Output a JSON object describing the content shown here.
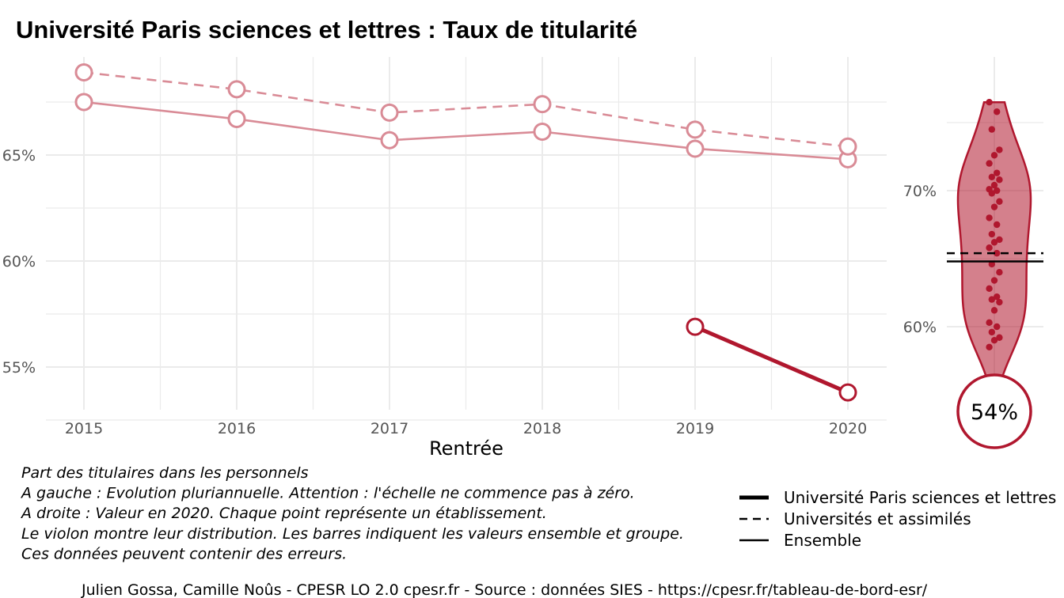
{
  "title": "Université Paris sciences et lettres  :  Taux de titularité",
  "chart_data": [
    {
      "type": "line",
      "xlabel": "Rentrée",
      "ylabel": "",
      "x": [
        2015,
        2016,
        2017,
        2018,
        2019,
        2020
      ],
      "x_tick_labels": [
        "2015",
        "2016",
        "2017",
        "2018",
        "2019",
        "2020"
      ],
      "ylim": [
        52.5,
        69.5
      ],
      "y_ticks": [
        55,
        60,
        65
      ],
      "y_tick_labels": [
        "55%",
        "60%",
        "65%"
      ],
      "grid": true,
      "series": [
        {
          "name": "Université Paris sciences et lettres",
          "values": [
            null,
            null,
            null,
            null,
            56.9,
            53.8
          ],
          "color": "#b0172e",
          "style": "solid-thick"
        },
        {
          "name": "Universités et assimilés",
          "values": [
            68.9,
            68.1,
            67.0,
            67.4,
            66.2,
            65.4
          ],
          "color": "#d98b96",
          "style": "dashed"
        },
        {
          "name": "Ensemble",
          "values": [
            67.5,
            66.7,
            65.7,
            66.1,
            65.3,
            64.8
          ],
          "color": "#d98b96",
          "style": "solid"
        }
      ]
    },
    {
      "type": "violin",
      "ylim": [
        54.8,
        76.5
      ],
      "y_ticks": [
        60,
        70
      ],
      "y_tick_labels": [
        "60%",
        "70%"
      ],
      "grid": true,
      "points": [
        58.5,
        59.0,
        59.2,
        59.6,
        60.0,
        60.3,
        61.2,
        61.8,
        62.0,
        62.2,
        62.8,
        63.4,
        64.0,
        64.6,
        65.4,
        65.8,
        66.2,
        66.4,
        66.8,
        67.5,
        68.0,
        68.8,
        69.2,
        69.8,
        70.0,
        70.1,
        70.4,
        70.8,
        71.0,
        71.3,
        72.0,
        72.6,
        73.0,
        74.5,
        75.8,
        76.5
      ],
      "marker_value": 54,
      "marker_label": "54%",
      "reference_lines": [
        {
          "name": "Universités et assimilés",
          "value": 65.4,
          "style": "dashed"
        },
        {
          "name": "Ensemble",
          "value": 64.8,
          "style": "solid"
        }
      ],
      "color": "#b0172e"
    }
  ],
  "notes": [
    "Part des titulaires dans les personnels",
    "A gauche : Evolution pluriannuelle. Attention : l'échelle ne commence pas à zéro.",
    "A droite : Valeur en 2020. Chaque point représente un établissement.",
    "Le violon montre leur distribution. Les barres indiquent les valeurs ensemble et groupe.",
    "Ces données peuvent contenir des erreurs."
  ],
  "legend": {
    "placement": "bottom-right",
    "items": [
      {
        "label": "Université Paris sciences et lettres",
        "style": "solid-thick"
      },
      {
        "label": "Universités et assimilés",
        "style": "dashed"
      },
      {
        "label": "Ensemble",
        "style": "solid"
      }
    ]
  },
  "caption": "Julien Gossa, Camille Noûs - CPESR LO 2.0 cpesr.fr - Source : données SIES - https://cpesr.fr/tableau-de-bord-esr/"
}
